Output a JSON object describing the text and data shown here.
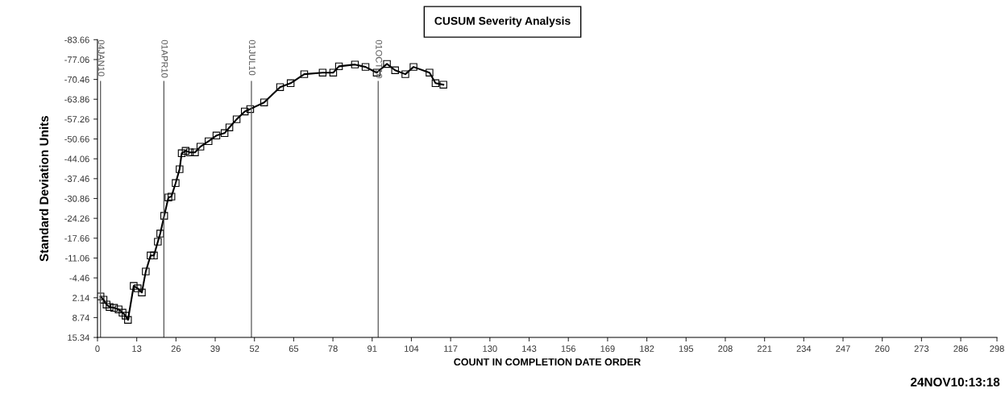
{
  "chart_data": {
    "type": "line",
    "title": "CUSUM Severity Analysis",
    "xlabel": "COUNT IN COMPLETION DATE ORDER",
    "ylabel": "Standard Deviation Units",
    "x": [
      1,
      2,
      3,
      4,
      5.5,
      7,
      8.3,
      9.3,
      10.1,
      12,
      13.3,
      14.7,
      16,
      17.6,
      18.7,
      20,
      20.8,
      22.1,
      23.5,
      24.5,
      25.9,
      27.2,
      27.9,
      29.2,
      30.6,
      32.3,
      34.1,
      36.8,
      39.4,
      42.1,
      43.7,
      46.1,
      48.8,
      50.6,
      55.2,
      60.5,
      64,
      68.5,
      74.6,
      78.1,
      80,
      85.3,
      88.8,
      92.5,
      95.9,
      98.6,
      102,
      104.7,
      110,
      112,
      114.6
    ],
    "values": [
      1.7,
      2.8,
      4.4,
      5.2,
      5.5,
      6.0,
      7.1,
      8.1,
      9.5,
      -1.8,
      -1.0,
      0.4,
      -6.6,
      -11.9,
      -11.9,
      -16.5,
      -19.2,
      -25.1,
      -31.2,
      -31.5,
      -36.0,
      -40.6,
      -45.9,
      -46.7,
      -46.2,
      -46.2,
      -48.1,
      -49.9,
      -51.8,
      -52.6,
      -54.5,
      -57.2,
      -59.8,
      -60.6,
      -62.8,
      -67.9,
      -69.2,
      -72.2,
      -72.7,
      -72.7,
      -74.8,
      -75.4,
      -74.6,
      -72.7,
      -75.6,
      -73.5,
      -72.2,
      -74.6,
      -72.7,
      -69.2,
      -68.7
    ],
    "color": "#000000",
    "marker": "square",
    "line_style": "solid",
    "grid": false,
    "legend": false,
    "xlim": [
      0,
      298
    ],
    "xticks": [
      0,
      13,
      26,
      39,
      52,
      65,
      78,
      91,
      104,
      117,
      130,
      143,
      156,
      169,
      182,
      195,
      208,
      221,
      234,
      247,
      260,
      273,
      286,
      298
    ],
    "ylim": [
      15.34,
      -83.66
    ],
    "yticks": [
      {
        "value": -83.66,
        "label": "-83.66"
      },
      {
        "value": -77.06,
        "label": "-77.06"
      },
      {
        "value": -70.46,
        "label": "-70.46"
      },
      {
        "value": -63.86,
        "label": "-63.86"
      },
      {
        "value": -57.26,
        "label": "-57.26"
      },
      {
        "value": -50.66,
        "label": "-50.66"
      },
      {
        "value": -44.06,
        "label": "-44.06"
      },
      {
        "value": -37.46,
        "label": "-37.46"
      },
      {
        "value": -30.86,
        "label": "-30.86"
      },
      {
        "value": -24.26,
        "label": "-24.26"
      },
      {
        "value": -17.66,
        "label": "-17.66"
      },
      {
        "value": -11.06,
        "label": "-11.06"
      },
      {
        "value": -4.46,
        "label": "-4.46"
      },
      {
        "value": 2.14,
        "label": "2.14"
      },
      {
        "value": 8.74,
        "label": "8.74"
      },
      {
        "value": 15.34,
        "label": "15.34"
      }
    ],
    "ref_lines": [
      {
        "axis": "x",
        "value": 1,
        "label": "04JAN10",
        "color": "#555555"
      },
      {
        "axis": "x",
        "value": 22,
        "label": "01APR10",
        "color": "#555555"
      },
      {
        "axis": "x",
        "value": 51,
        "label": "01JUL10",
        "color": "#555555"
      },
      {
        "axis": "x",
        "value": 93,
        "label": "01OCT10",
        "color": "#555555"
      }
    ],
    "annotations": [
      "24NOV10:13:18"
    ]
  }
}
